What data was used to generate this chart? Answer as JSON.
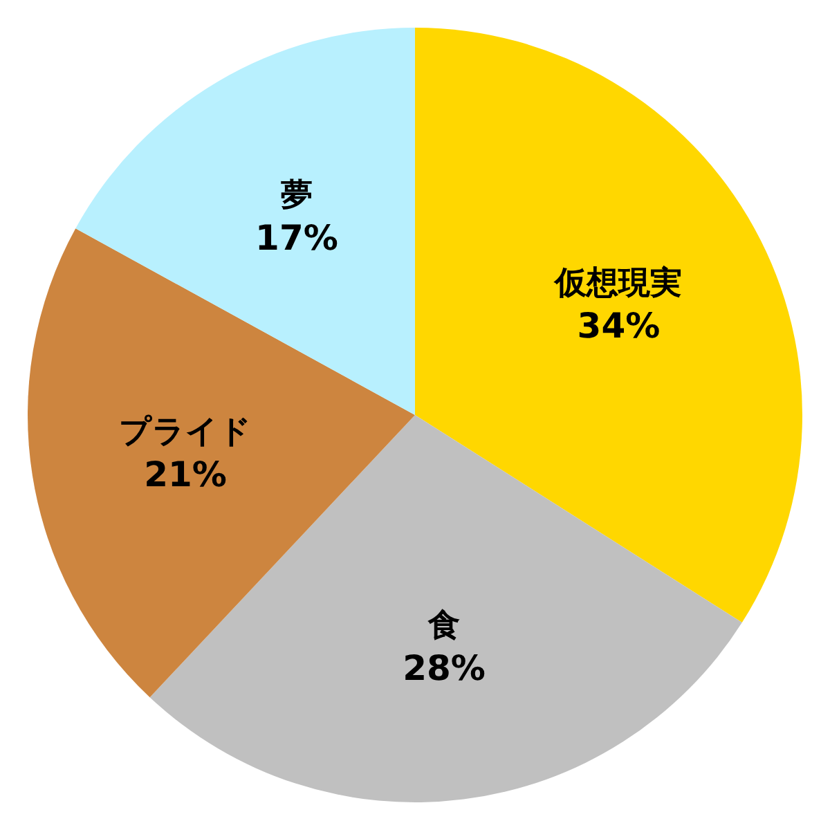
{
  "chart_data": {
    "type": "pie",
    "categories": [
      "仮想現実",
      "食",
      "プライド",
      "夢"
    ],
    "values": [
      34,
      28,
      21,
      17
    ],
    "value_labels": [
      "34%",
      "28%",
      "21%",
      "17%"
    ],
    "colors": [
      "#ffd700",
      "#c0c0c0",
      "#cd853f",
      "#b8f0fe"
    ]
  }
}
